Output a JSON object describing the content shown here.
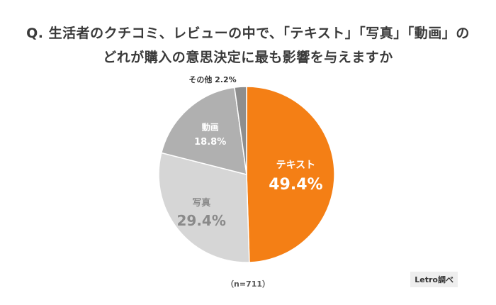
{
  "question": {
    "line1": "Q. 生活者のクチコミ、レビューの中で、「テキスト」「写真」「動画」の",
    "line2": "どれが購入の意思決定に最も影響を与えますか"
  },
  "sample_note": "（n=711）",
  "source": "Letro調べ",
  "chart_data": {
    "type": "pie",
    "slices": [
      {
        "label": "テキスト",
        "value": 49.4,
        "value_label": "49.4%",
        "color": "#f47f15",
        "text_color": "#ffffff"
      },
      {
        "label": "写真",
        "value": 29.4,
        "value_label": "29.4%",
        "color": "#d6d6d6",
        "text_color": "#8a8a8a"
      },
      {
        "label": "動画",
        "value": 18.8,
        "value_label": "18.8%",
        "color": "#b0b0b0",
        "text_color": "#ffffff"
      },
      {
        "label": "その他",
        "value": 2.2,
        "value_label": "2.2%",
        "color": "#8e8e8e",
        "text_color": "#333333"
      }
    ],
    "start": "12 o'clock",
    "direction": "clockwise"
  }
}
